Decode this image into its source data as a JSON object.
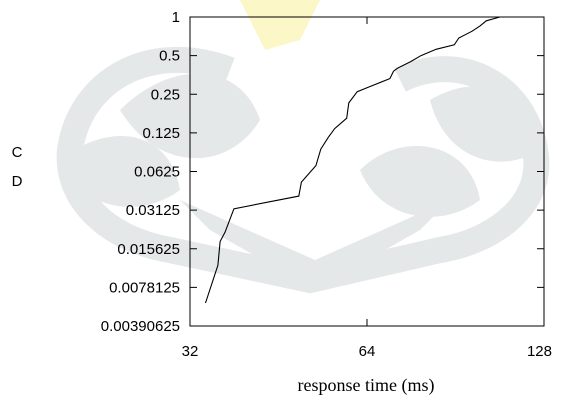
{
  "chart_data": {
    "type": "line",
    "xlabel": "response time (ms)",
    "ylabel": "CD",
    "ylabel_lines": [
      "C",
      "D"
    ],
    "x_scale": "log2",
    "y_scale": "log2",
    "xlim": [
      32,
      128
    ],
    "ylim": [
      0.00390625,
      1
    ],
    "x_ticks": [
      32,
      64,
      128
    ],
    "x_tick_labels": [
      "32",
      "64",
      "128"
    ],
    "y_ticks": [
      0.00390625,
      0.0078125,
      0.015625,
      0.03125,
      0.0625,
      0.125,
      0.25,
      0.5,
      1
    ],
    "y_tick_labels": [
      "0.00390625",
      "0.0078125",
      "0.015625",
      "0.03125",
      "0.0625",
      "0.125",
      "0.25",
      "0.5",
      "1"
    ],
    "grid": false,
    "series": [
      {
        "color": "#000000",
        "points": [
          [
            34.0,
            0.0059
          ],
          [
            35.7,
            0.0116
          ],
          [
            36.0,
            0.0178
          ],
          [
            36.7,
            0.021
          ],
          [
            38.0,
            0.032
          ],
          [
            49.0,
            0.0402
          ],
          [
            49.5,
            0.0517
          ],
          [
            52.4,
            0.0695
          ],
          [
            53.4,
            0.0934
          ],
          [
            55.0,
            0.1155
          ],
          [
            56.4,
            0.135
          ],
          [
            59.1,
            0.1628
          ],
          [
            59.6,
            0.214
          ],
          [
            61.6,
            0.2615
          ],
          [
            65.0,
            0.2895
          ],
          [
            70.0,
            0.331
          ],
          [
            71.0,
            0.378
          ],
          [
            72.1,
            0.3985
          ],
          [
            76.0,
            0.45
          ],
          [
            79.0,
            0.499
          ],
          [
            83.9,
            0.56
          ],
          [
            90.1,
            0.6071
          ],
          [
            91.7,
            0.686
          ],
          [
            96.6,
            0.775
          ],
          [
            99.7,
            0.8535
          ],
          [
            102.1,
            0.934
          ],
          [
            107.7,
            1.0
          ]
        ]
      }
    ]
  },
  "watermark": {
    "leaf_color": "#e4e8e8",
    "accent_color": "#fbf7c6"
  }
}
